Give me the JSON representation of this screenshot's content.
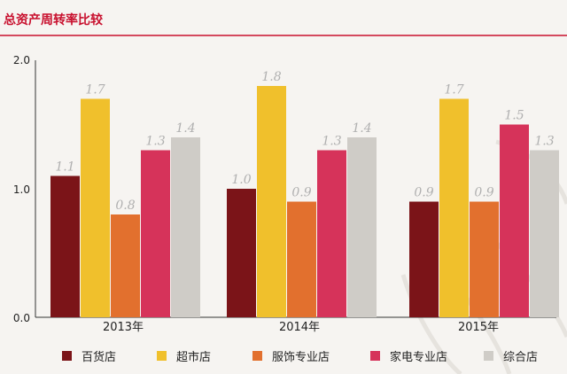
{
  "chart_data": {
    "type": "bar",
    "title": "总资产周转率比较",
    "categories": [
      "2013年",
      "2014年",
      "2015年"
    ],
    "series": [
      {
        "name": "百货店",
        "values": [
          1.1,
          1.0,
          0.9
        ],
        "labels": [
          "1.1",
          "1.0",
          "0.9"
        ],
        "color": "#7b1418"
      },
      {
        "name": "超市店",
        "values": [
          1.7,
          1.8,
          1.7
        ],
        "labels": [
          "1.7",
          "1.8",
          "1.7"
        ],
        "color": "#f0c02c"
      },
      {
        "name": "服饰专业店",
        "values": [
          0.8,
          0.9,
          0.9
        ],
        "labels": [
          "0.8",
          "0.9",
          "0.9"
        ],
        "color": "#e2702e"
      },
      {
        "name": "家电专业店",
        "values": [
          1.3,
          1.3,
          1.5
        ],
        "labels": [
          "1.3",
          "1.3",
          "1.5"
        ],
        "color": "#d6335a"
      },
      {
        "name": "综合店",
        "values": [
          1.4,
          1.4,
          1.3
        ],
        "labels": [
          "1.4",
          "1.4",
          "1.3"
        ],
        "color": "#cfccc7"
      }
    ],
    "yticks": [
      "0.0",
      "1.0",
      "2.0"
    ],
    "ylim": [
      0,
      2
    ],
    "grid": false,
    "legend_position": "bottom",
    "title_color": "#c8102e"
  }
}
